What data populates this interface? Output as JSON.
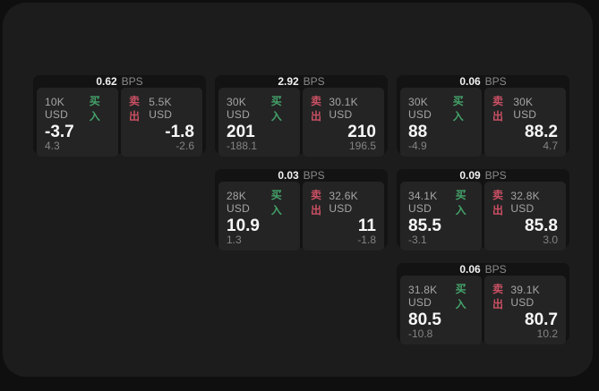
{
  "labels": {
    "bps_unit": "BPS",
    "buy": "买入",
    "sell": "卖出"
  },
  "colors": {
    "page_background": "#0f0f0f",
    "panel_background": "#1c1c1c",
    "card_background": "#131313",
    "side_background": "#242424",
    "buy_green": "#44a36a",
    "sell_red": "#cc5064",
    "value_white": "#f7f7f7",
    "muted_gray": "#848484"
  },
  "cards": [
    {
      "bps": "0.62",
      "buy": {
        "amount": "10K USD",
        "value": "-3.7",
        "delta": "4.3"
      },
      "sell": {
        "amount": "5.5K USD",
        "value": "-1.8",
        "delta": "-2.6"
      }
    },
    {
      "bps": "2.92",
      "buy": {
        "amount": "30K USD",
        "value": "201",
        "delta": "-188.1"
      },
      "sell": {
        "amount": "30.1K USD",
        "value": "210",
        "delta": "196.5"
      }
    },
    {
      "bps": "0.06",
      "buy": {
        "amount": "30K USD",
        "value": "88",
        "delta": "-4.9"
      },
      "sell": {
        "amount": "30K USD",
        "value": "88.2",
        "delta": "4.7"
      }
    },
    {
      "bps": "0.03",
      "buy": {
        "amount": "28K USD",
        "value": "10.9",
        "delta": "1.3"
      },
      "sell": {
        "amount": "32.6K USD",
        "value": "11",
        "delta": "-1.8"
      }
    },
    {
      "bps": "0.09",
      "buy": {
        "amount": "34.1K USD",
        "value": "85.5",
        "delta": "-3.1"
      },
      "sell": {
        "amount": "32.8K USD",
        "value": "85.8",
        "delta": "3.0"
      }
    },
    {
      "bps": "0.06",
      "buy": {
        "amount": "31.8K USD",
        "value": "80.5",
        "delta": "-10.8"
      },
      "sell": {
        "amount": "39.1K USD",
        "value": "80.7",
        "delta": "10.2"
      }
    }
  ]
}
